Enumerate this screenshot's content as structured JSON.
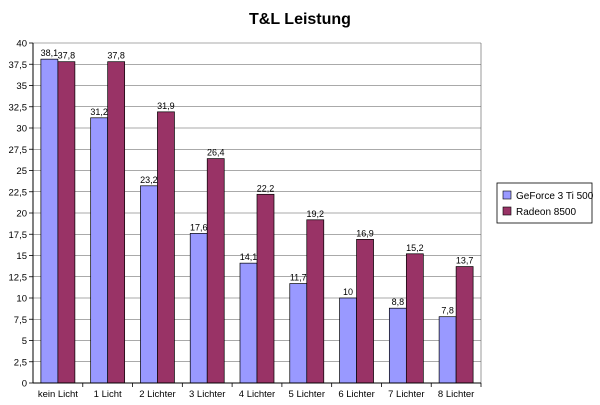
{
  "chart_data": {
    "type": "bar",
    "title": "T&L Leistung",
    "xlabel": "",
    "ylabel": "",
    "ylim": [
      0,
      40
    ],
    "ytick_step": 2.5,
    "grid": true,
    "legend_position": "right",
    "categories": [
      "kein Licht",
      "1 Licht",
      "2 Lichter",
      "3  Lichter",
      "4 Lichter",
      "5 Lichter",
      "6 Lichter",
      "7 Lichter",
      "8 Lichter"
    ],
    "series": [
      {
        "name": "GeForce 3 Ti 500",
        "color": "#9999ff",
        "values": [
          38.1,
          31.2,
          23.2,
          17.6,
          14.1,
          11.7,
          10,
          8.8,
          7.8
        ],
        "labels": [
          "38,1",
          "31,2",
          "23,2",
          "17,6",
          "14,1",
          "11,7",
          "10",
          "8,8",
          "7,8"
        ]
      },
      {
        "name": "Radeon 8500",
        "color": "#993366",
        "values": [
          37.8,
          37.8,
          31.9,
          26.4,
          22.2,
          19.2,
          16.9,
          15.2,
          13.7
        ],
        "labels": [
          "37,8",
          "37,8",
          "31,9",
          "26,4",
          "22,2",
          "19,2",
          "16,9",
          "15,2",
          "13,7"
        ]
      }
    ]
  }
}
